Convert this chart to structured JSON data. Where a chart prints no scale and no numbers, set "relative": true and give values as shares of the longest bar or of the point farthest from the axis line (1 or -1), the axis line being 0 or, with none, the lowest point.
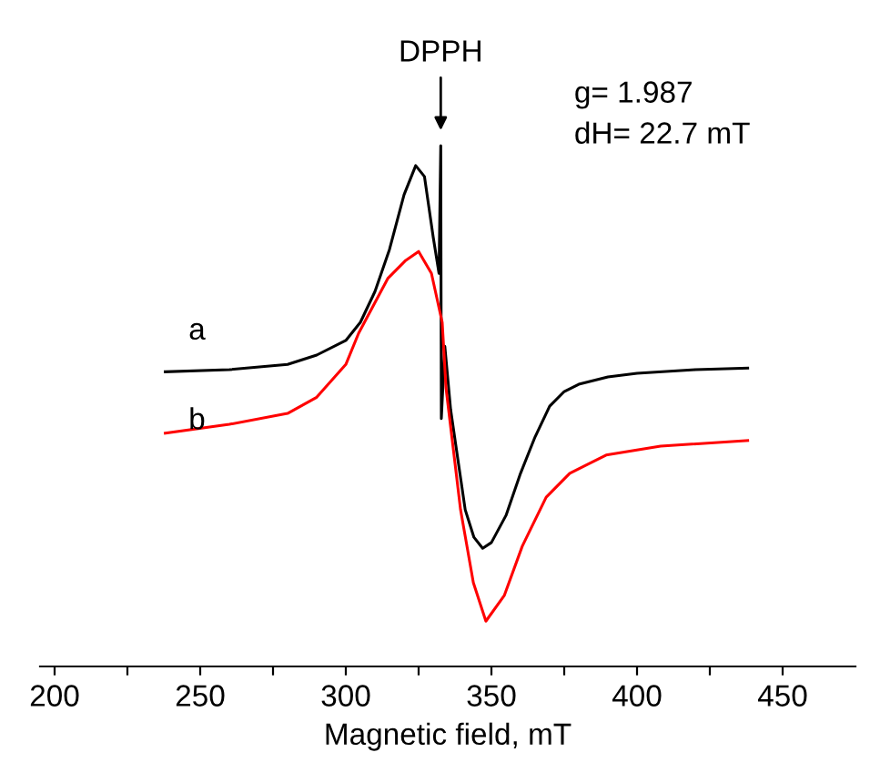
{
  "chart_data": {
    "type": "line",
    "relative": true,
    "xlabel": "Magnetic field, mT",
    "xlim": [
      195,
      475
    ],
    "xticks": [
      200,
      {
        "value": 225,
        "label": null
      },
      250,
      {
        "value": 275,
        "label": null
      },
      300,
      {
        "value": 325,
        "label": null
      },
      350,
      {
        "value": 375,
        "label": null
      },
      400,
      {
        "value": 425,
        "label": null
      },
      450
    ],
    "grid": false,
    "legend": false,
    "marker": "none",
    "line_style": "solid",
    "series": [
      {
        "name": "a",
        "color": "#000000",
        "x": [
          238,
          260,
          280,
          290,
          300,
          305,
          310,
          315,
          320,
          324,
          327,
          330,
          332,
          332.6,
          332.8,
          334,
          336,
          338,
          341,
          344,
          347,
          350,
          355,
          360,
          365,
          370,
          375,
          380,
          390,
          400,
          420,
          438
        ],
        "values": [
          0.566,
          0.57,
          0.58,
          0.598,
          0.626,
          0.661,
          0.72,
          0.801,
          0.906,
          0.962,
          0.941,
          0.825,
          0.755,
          1.0,
          0.476,
          0.615,
          0.493,
          0.416,
          0.301,
          0.248,
          0.227,
          0.238,
          0.29,
          0.371,
          0.441,
          0.5,
          0.528,
          0.542,
          0.556,
          0.563,
          0.57,
          0.573
        ]
      },
      {
        "name": "b",
        "color": "#ff0000",
        "x": [
          238,
          260,
          280,
          290,
          300,
          304.4,
          314.4,
          320.6,
          325,
          329.4,
          333.1,
          334.4,
          339.4,
          343.8,
          348.1,
          354.4,
          360.6,
          368.8,
          376.9,
          389.4,
          408.1,
          438
        ],
        "values": [
          0.448,
          0.465,
          0.486,
          0.517,
          0.58,
          0.64,
          0.745,
          0.78,
          0.797,
          0.755,
          0.661,
          0.535,
          0.301,
          0.161,
          0.087,
          0.136,
          0.231,
          0.325,
          0.371,
          0.406,
          0.423,
          0.434
        ]
      }
    ],
    "annotations": [
      {
        "text": "DPPH",
        "x": 332.6,
        "y": 1.0
      },
      "g= 1.987",
      "dH= 22.7 mT"
    ]
  }
}
